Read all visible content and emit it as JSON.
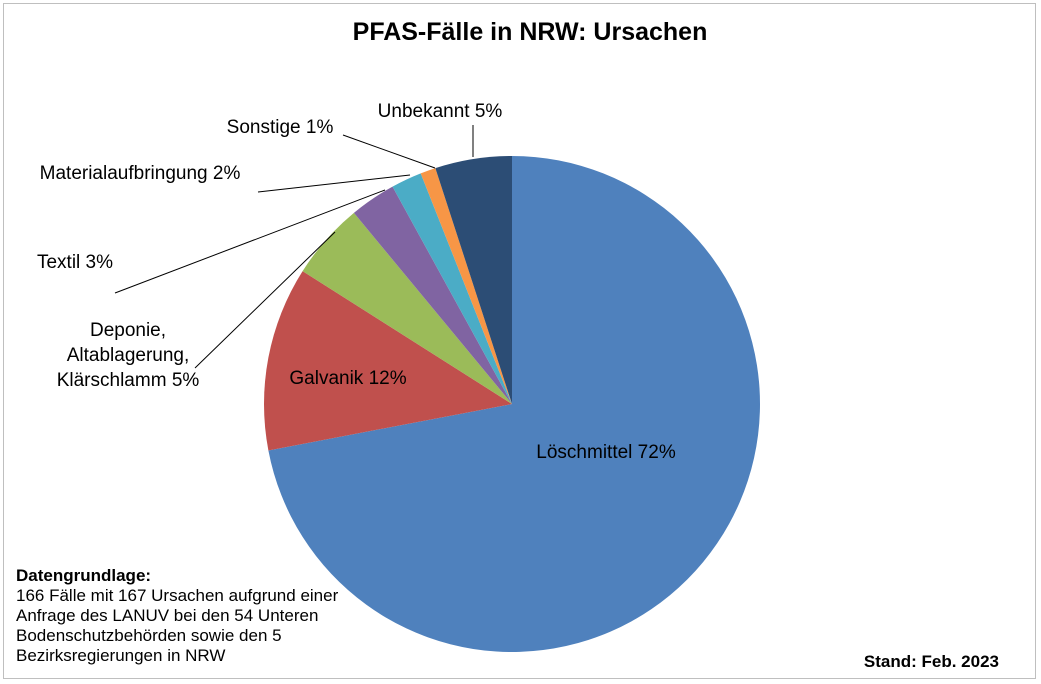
{
  "chart_data": {
    "type": "pie",
    "title": "PFAS-Fälle in NRW: Ursachen",
    "categories": [
      "Löschmittel",
      "Galvanik",
      "Deponie, Altablagerung, Klärschlamm",
      "Textil",
      "Materialaufbringung",
      "Sonstige",
      "Unbekannt"
    ],
    "values": [
      72,
      12,
      5,
      3,
      2,
      1,
      5
    ],
    "value_labels": [
      "72%",
      "12%",
      "5%",
      "3%",
      "2%",
      "1%",
      "5%"
    ],
    "colors": [
      "#4f81bd",
      "#c0504d",
      "#9bbb59",
      "#8064a2",
      "#4bacc6",
      "#f79646",
      "#2c4d75"
    ],
    "note_title": "Datengrundlage:",
    "note": "166 Fälle mit 167 Ursachen aufgrund einer Anfrage des LANUV bei den 54 Unteren Bodenschutzbehörden sowie den 5 Bezirksregierungen in NRW",
    "stand": "Stand: Feb. 2023"
  }
}
